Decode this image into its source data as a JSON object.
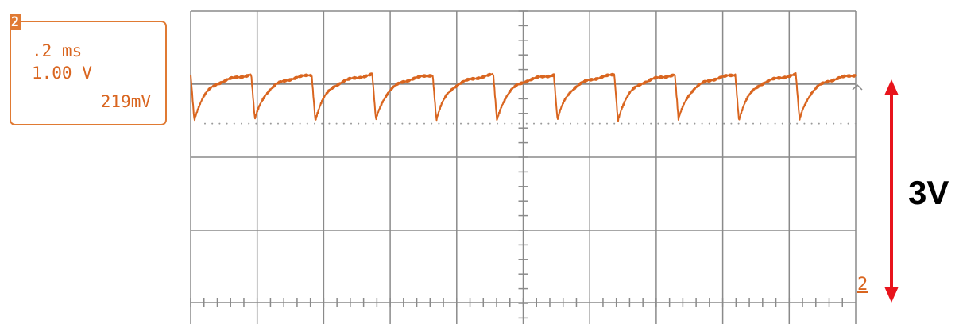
{
  "channel_badge": "2",
  "info_box": {
    "timebase": ".2 ms",
    "volts_per_div": "1.00 V",
    "measurement": "219mV"
  },
  "scale_annotation": "3V",
  "right_channel_marker": "2",
  "colors": {
    "trace": "#d9651f",
    "grid": "#8a8a8a",
    "arrow": "#e8141c",
    "dotted_level": "#9a9a9a"
  },
  "chart_data": {
    "type": "line",
    "title": "",
    "xlabel": "",
    "ylabel": "",
    "grid": true,
    "divisions": {
      "x": 10,
      "y": 4.5
    },
    "xlim": [
      0,
      2.0
    ],
    "ylim": [
      -1.0,
      3.5
    ],
    "x_unit": "ms",
    "y_unit": "V",
    "series": [
      {
        "waveform": "sawtooth-like recovery pulses",
        "period_ms": 0.182,
        "baseline_V": 3.0,
        "dip_min_V": 2.5,
        "dip_recovery_ms": 0.05,
        "pulses": 11
      }
    ],
    "reference_level_V": 2.45,
    "ground_level_V": 0.0
  }
}
